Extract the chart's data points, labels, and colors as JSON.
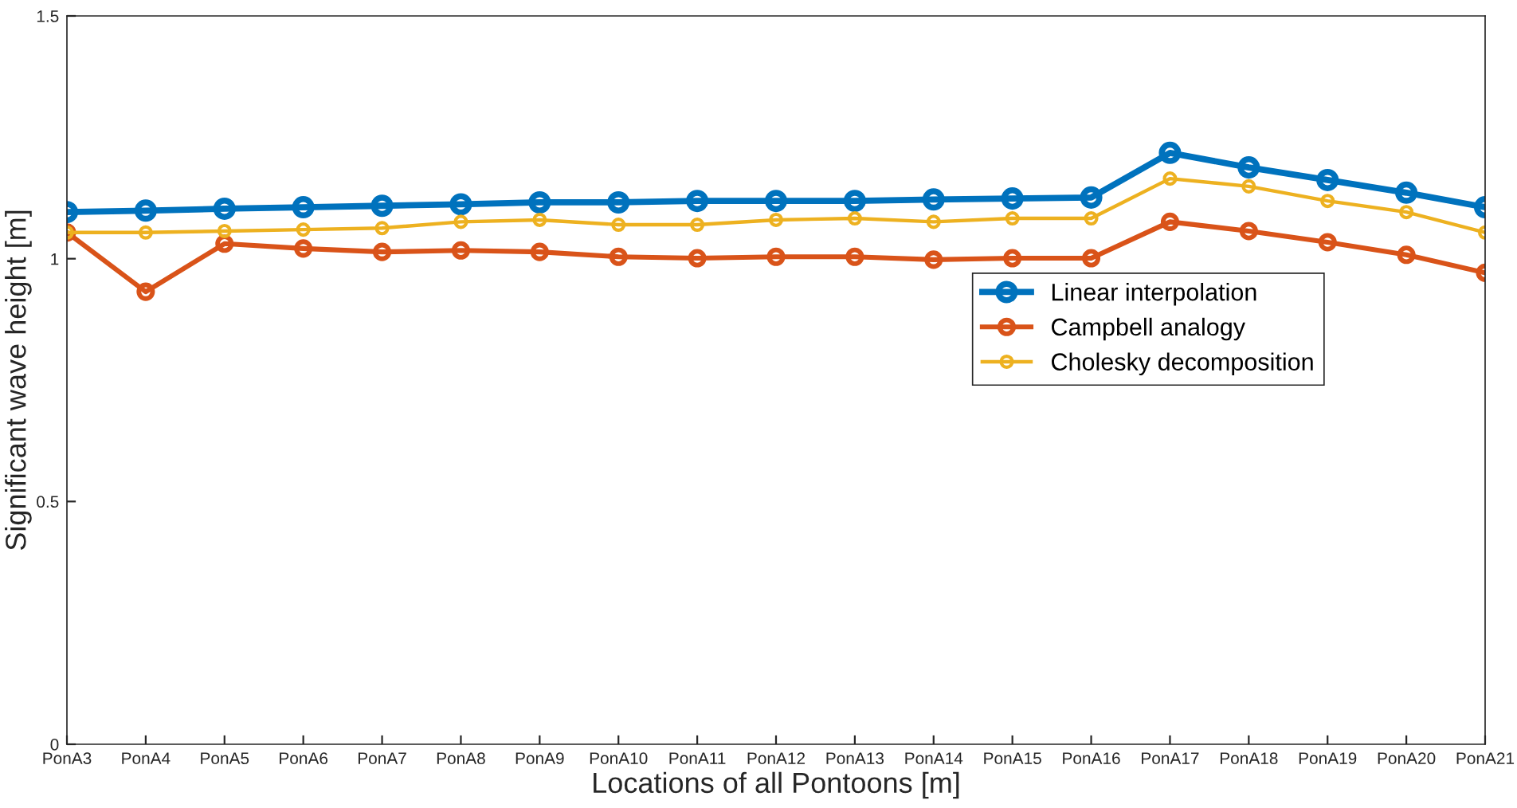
{
  "chart_data": {
    "type": "line",
    "xlabel": "Locations of all Pontoons [m]",
    "ylabel": "Significant wave height [m]",
    "categories": [
      "PonA3",
      "PonA4",
      "PonA5",
      "PonA6",
      "PonA7",
      "PonA8",
      "PonA9",
      "PonA10",
      "PonA11",
      "PonA12",
      "PonA13",
      "PonA14",
      "PonA15",
      "PonA16",
      "PonA17",
      "PonA18",
      "PonA19",
      "PonA20",
      "PonA21"
    ],
    "series": [
      {
        "name": "Linear interpolation",
        "color": "#0072bd",
        "values": [
          1.096,
          1.099,
          1.103,
          1.106,
          1.109,
          1.112,
          1.116,
          1.116,
          1.119,
          1.119,
          1.119,
          1.122,
          1.124,
          1.126,
          1.218,
          1.188,
          1.162,
          1.136,
          1.106
        ]
      },
      {
        "name": "Campbell analogy",
        "color": "#d95319",
        "values": [
          1.054,
          0.932,
          1.031,
          1.021,
          1.014,
          1.017,
          1.014,
          1.004,
          1.001,
          1.004,
          1.004,
          0.998,
          1.001,
          1.001,
          1.076,
          1.057,
          1.034,
          1.008,
          0.971
        ]
      },
      {
        "name": "Cholesky decomposition",
        "color": "#edb120",
        "values": [
          1.054,
          1.054,
          1.057,
          1.06,
          1.063,
          1.076,
          1.08,
          1.07,
          1.07,
          1.08,
          1.083,
          1.076,
          1.083,
          1.083,
          1.165,
          1.149,
          1.119,
          1.096,
          1.054
        ]
      }
    ],
    "ylim": [
      0,
      1.5
    ],
    "yticks": [
      0,
      0.5,
      1,
      1.5
    ],
    "grid": false,
    "legend": "right",
    "marker": "circle",
    "line_style": "solid"
  }
}
